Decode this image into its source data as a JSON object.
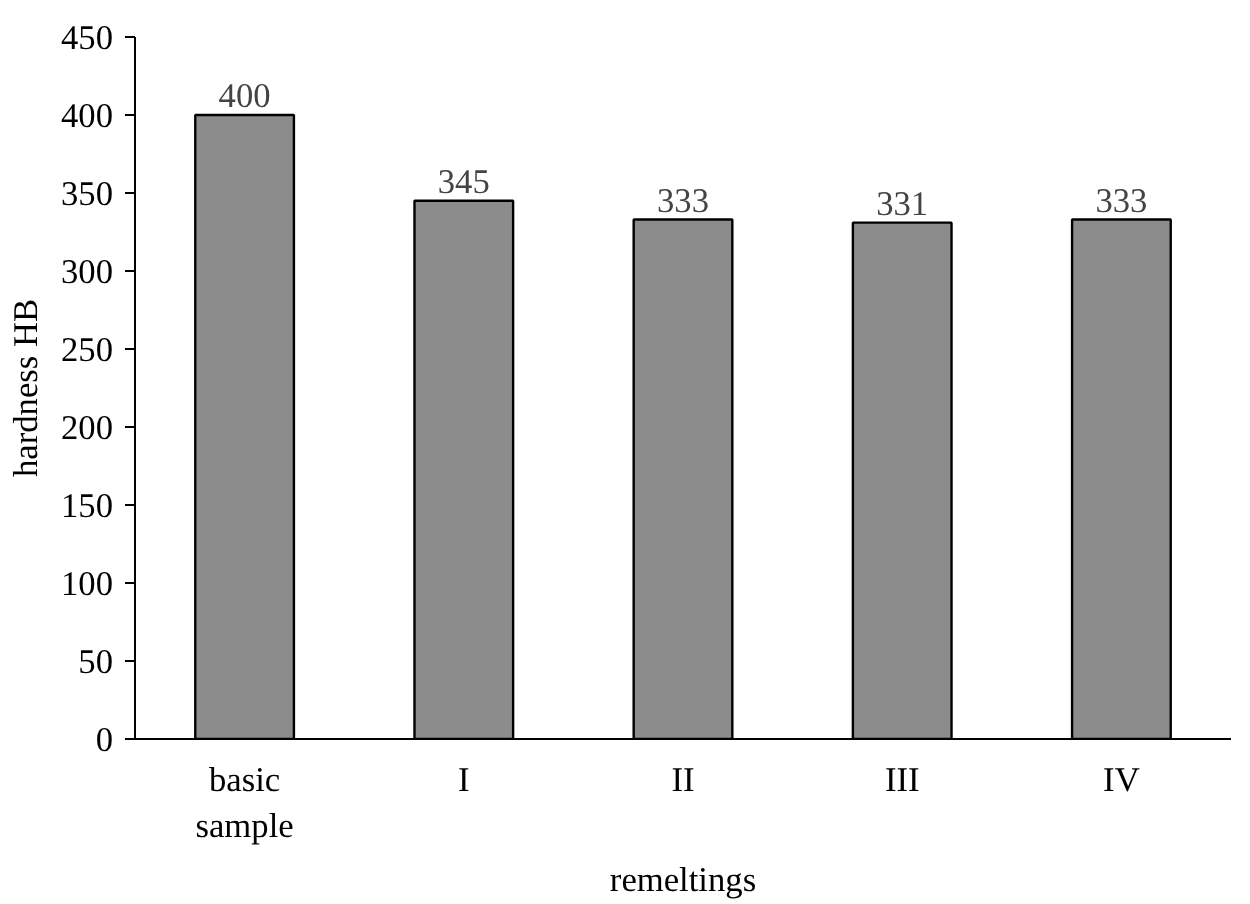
{
  "chart_data": {
    "type": "bar",
    "xlabel": "remeltings",
    "ylabel": "hardness HB",
    "categories": [
      "basic sample",
      "I",
      "II",
      "III",
      "IV"
    ],
    "values": [
      400,
      345,
      333,
      331,
      333
    ],
    "color": "#8c8c8c",
    "ylim": [
      0,
      450
    ],
    "yticks": [
      0,
      50,
      100,
      150,
      200,
      250,
      300,
      350,
      400,
      450
    ],
    "grid": false,
    "data_labels": true
  }
}
